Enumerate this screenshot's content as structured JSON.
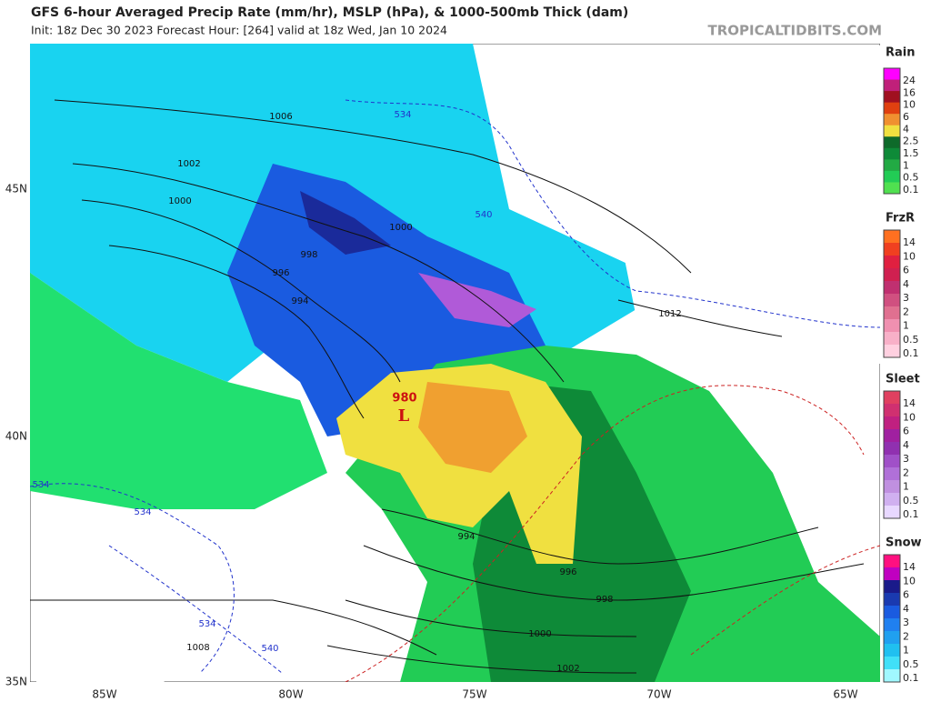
{
  "header": {
    "title": "GFS 6-hour Averaged Precip Rate (mm/hr), MSLP (hPa), & 1000-500mb Thick (dam)",
    "subtitle": "Init: 18z Dec 30 2023   Forecast Hour: [264]   valid at 18z Wed, Jan 10 2024",
    "credit": "TROPICALTIDBITS.COM"
  },
  "map": {
    "lat_labels": [
      "45N",
      "40N",
      "35N"
    ],
    "lon_labels": [
      "85W",
      "80W",
      "75W",
      "70W",
      "65W"
    ],
    "isobar_labels": [
      "1006",
      "1002",
      "1000",
      "998",
      "996",
      "994",
      "1000",
      "1012",
      "994",
      "996",
      "998",
      "1000",
      "1002",
      "1008"
    ],
    "thickness_labels": [
      "534",
      "540",
      "534",
      "534",
      "534",
      "540"
    ],
    "low": {
      "pressure": "980",
      "symbol": "L"
    }
  },
  "legend": [
    {
      "title": "Rain",
      "labels": [
        "24",
        "16",
        "10",
        "6",
        "4",
        "2.5",
        "1.5",
        "1",
        "0.5",
        "0.1"
      ]
    },
    {
      "title": "FrzR",
      "labels": [
        "14",
        "10",
        "6",
        "4",
        "3",
        "2",
        "1",
        "0.5",
        "0.1"
      ]
    },
    {
      "title": "Sleet",
      "labels": [
        "14",
        "10",
        "6",
        "4",
        "3",
        "2",
        "1",
        "0.5",
        "0.1"
      ]
    },
    {
      "title": "Snow",
      "labels": [
        "14",
        "10",
        "6",
        "4",
        "3",
        "2",
        "1",
        "0.5",
        "0.1"
      ]
    }
  ]
}
